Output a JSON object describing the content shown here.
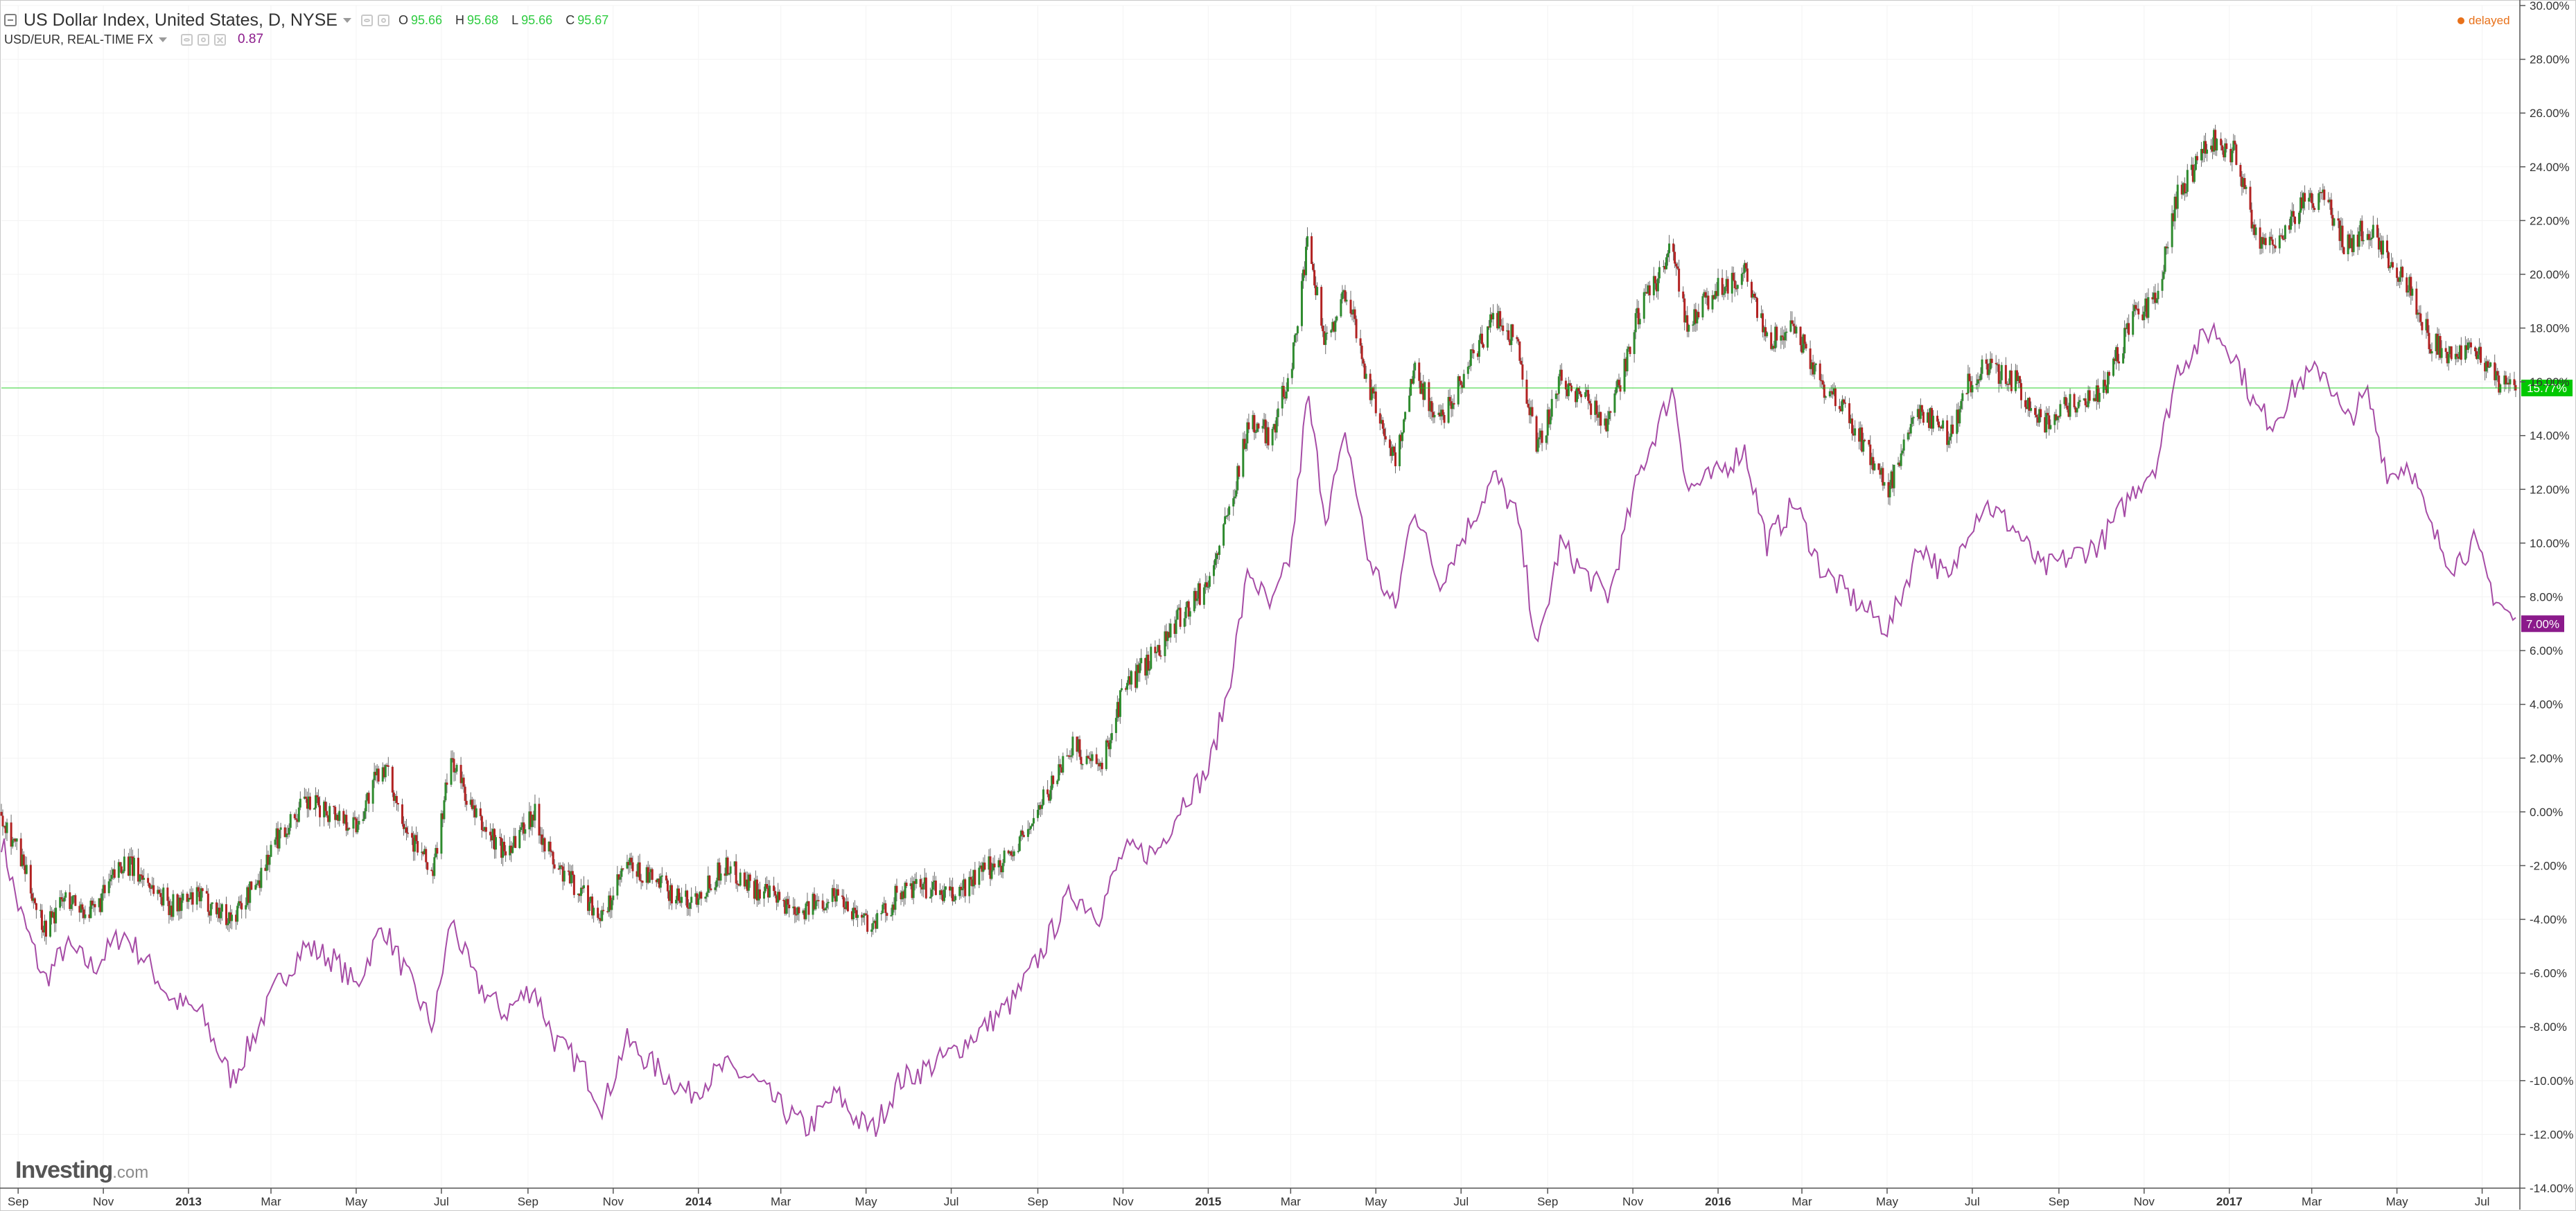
{
  "header": {
    "title": "US Dollar Index, United States, D, NYSE",
    "ohlc": [
      {
        "key": "O",
        "value": "95.66"
      },
      {
        "key": "H",
        "value": "95.68"
      },
      {
        "key": "L",
        "value": "95.66"
      },
      {
        "key": "C",
        "value": "95.67"
      }
    ],
    "compare_title": "USD/EUR, REAL-TIME FX",
    "compare_value": "0.87",
    "delayed_label": "delayed",
    "logo_main": "Investing",
    "logo_suffix": ".com"
  },
  "colors": {
    "up": "#2e8b2e",
    "down": "#b22222",
    "wick": "#6b6b6b",
    "compare_line": "#a64ca6",
    "last_price_line": "#00c800",
    "last_price_badge": "#00c800",
    "compare_badge": "#8b1a8b",
    "delayed": "#e8711a"
  },
  "chart_data": {
    "type": "line",
    "title": "US Dollar Index, United States, D, NYSE",
    "x_axis": {
      "ticks": [
        {
          "date": "2012-09-01",
          "label": "Sep"
        },
        {
          "date": "2012-11-01",
          "label": "Nov"
        },
        {
          "date": "2013-01-01",
          "label": "2013",
          "bold": true
        },
        {
          "date": "2013-03-01",
          "label": "Mar"
        },
        {
          "date": "2013-05-01",
          "label": "May"
        },
        {
          "date": "2013-07-01",
          "label": "Jul"
        },
        {
          "date": "2013-09-01",
          "label": "Sep"
        },
        {
          "date": "2013-11-01",
          "label": "Nov"
        },
        {
          "date": "2014-01-01",
          "label": "2014",
          "bold": true
        },
        {
          "date": "2014-03-01",
          "label": "Mar"
        },
        {
          "date": "2014-05-01",
          "label": "May"
        },
        {
          "date": "2014-07-01",
          "label": "Jul"
        },
        {
          "date": "2014-09-01",
          "label": "Sep"
        },
        {
          "date": "2014-11-01",
          "label": "Nov"
        },
        {
          "date": "2015-01-01",
          "label": "2015",
          "bold": true
        },
        {
          "date": "2015-03-01",
          "label": "Mar"
        },
        {
          "date": "2015-05-01",
          "label": "May"
        },
        {
          "date": "2015-07-01",
          "label": "Jul"
        },
        {
          "date": "2015-09-01",
          "label": "Sep"
        },
        {
          "date": "2015-11-01",
          "label": "Nov"
        },
        {
          "date": "2016-01-01",
          "label": "2016",
          "bold": true
        },
        {
          "date": "2016-03-01",
          "label": "Mar"
        },
        {
          "date": "2016-05-01",
          "label": "May"
        },
        {
          "date": "2016-07-01",
          "label": "Jul"
        },
        {
          "date": "2016-09-01",
          "label": "Sep"
        },
        {
          "date": "2016-11-01",
          "label": "Nov"
        },
        {
          "date": "2017-01-01",
          "label": "2017",
          "bold": true
        },
        {
          "date": "2017-03-01",
          "label": "Mar"
        },
        {
          "date": "2017-05-01",
          "label": "May"
        },
        {
          "date": "2017-07-01",
          "label": "Jul"
        }
      ],
      "range": [
        "2012-08-20",
        "2017-07-28"
      ]
    },
    "y_axis": {
      "unit": "%",
      "range": [
        -14,
        30
      ],
      "ticks": [
        30,
        28,
        26,
        24,
        22,
        20,
        18,
        16,
        14,
        12,
        10,
        8,
        6,
        4,
        2,
        0,
        -2,
        -4,
        -6,
        -8,
        -10,
        -12,
        -14
      ],
      "tick_labels": [
        "30.00%",
        "28.00%",
        "26.00%",
        "24.00%",
        "22.00%",
        "20.00%",
        "18.00%",
        "16.00%",
        "14.00%",
        "12.00%",
        "10.00%",
        "8.00%",
        "6.00%",
        "4.00%",
        "2.00%",
        "0.00%",
        "-2.00%",
        "-4.00%",
        "-6.00%",
        "-8.00%",
        "-10.00%",
        "-12.00%",
        "-14.00%"
      ]
    },
    "grid": true,
    "last_price_line": {
      "value": 15.77,
      "label": "15.77%"
    },
    "series": [
      {
        "name": "US Dollar Index, United States, D, NYSE",
        "type": "candlestick",
        "points": [
          [
            "2012-08-20",
            0.0
          ],
          [
            "2012-09-01",
            -1.5
          ],
          [
            "2012-09-20",
            -4.3
          ],
          [
            "2012-10-05",
            -3.2
          ],
          [
            "2012-10-25",
            -3.8
          ],
          [
            "2012-11-15",
            -1.8
          ],
          [
            "2012-12-01",
            -2.5
          ],
          [
            "2012-12-20",
            -3.5
          ],
          [
            "2013-01-10",
            -3.2
          ],
          [
            "2013-02-01",
            -4.0
          ],
          [
            "2013-02-20",
            -2.5
          ],
          [
            "2013-03-05",
            -1.0
          ],
          [
            "2013-03-25",
            0.3
          ],
          [
            "2013-04-15",
            0.0
          ],
          [
            "2013-05-01",
            -0.5
          ],
          [
            "2013-05-20",
            1.8
          ],
          [
            "2013-06-10",
            -1.0
          ],
          [
            "2013-06-25",
            -2.3
          ],
          [
            "2013-07-08",
            2.0
          ],
          [
            "2013-07-25",
            -0.2
          ],
          [
            "2013-08-15",
            -1.5
          ],
          [
            "2013-09-05",
            0.0
          ],
          [
            "2013-09-20",
            -2.0
          ],
          [
            "2013-10-10",
            -3.0
          ],
          [
            "2013-10-25",
            -4.0
          ],
          [
            "2013-11-10",
            -2.0
          ],
          [
            "2013-12-01",
            -2.6
          ],
          [
            "2013-12-25",
            -3.4
          ],
          [
            "2014-01-20",
            -2.0
          ],
          [
            "2014-02-10",
            -2.8
          ],
          [
            "2014-03-01",
            -3.4
          ],
          [
            "2014-03-20",
            -3.6
          ],
          [
            "2014-04-10",
            -3.0
          ],
          [
            "2014-04-25",
            -3.8
          ],
          [
            "2014-05-07",
            -4.2
          ],
          [
            "2014-05-25",
            -3.0
          ],
          [
            "2014-06-15",
            -2.8
          ],
          [
            "2014-07-01",
            -3.2
          ],
          [
            "2014-07-25",
            -2.2
          ],
          [
            "2014-08-15",
            -1.5
          ],
          [
            "2014-09-01",
            0.0
          ],
          [
            "2014-09-25",
            2.5
          ],
          [
            "2014-10-15",
            1.5
          ],
          [
            "2014-11-01",
            4.5
          ],
          [
            "2014-11-25",
            6.0
          ],
          [
            "2014-12-15",
            7.5
          ],
          [
            "2015-01-01",
            8.5
          ],
          [
            "2015-01-15",
            11.0
          ],
          [
            "2015-01-30",
            14.5
          ],
          [
            "2015-02-15",
            14.0
          ],
          [
            "2015-03-01",
            16.5
          ],
          [
            "2015-03-13",
            21.0
          ],
          [
            "2015-03-26",
            17.5
          ],
          [
            "2015-04-10",
            19.5
          ],
          [
            "2015-04-25",
            16.0
          ],
          [
            "2015-05-15",
            13.0
          ],
          [
            "2015-05-28",
            16.5
          ],
          [
            "2015-06-15",
            14.5
          ],
          [
            "2015-07-05",
            16.5
          ],
          [
            "2015-07-25",
            18.5
          ],
          [
            "2015-08-10",
            17.5
          ],
          [
            "2015-08-25",
            13.5
          ],
          [
            "2015-09-10",
            16.0
          ],
          [
            "2015-09-25",
            15.5
          ],
          [
            "2015-10-15",
            14.5
          ],
          [
            "2015-11-05",
            18.5
          ],
          [
            "2015-11-30",
            21.0
          ],
          [
            "2015-12-10",
            18.0
          ],
          [
            "2015-12-30",
            19.5
          ],
          [
            "2016-01-20",
            20.0
          ],
          [
            "2016-02-05",
            17.5
          ],
          [
            "2016-02-25",
            18.0
          ],
          [
            "2016-03-15",
            16.0
          ],
          [
            "2016-04-05",
            14.5
          ],
          [
            "2016-05-02",
            12.0
          ],
          [
            "2016-05-25",
            15.0
          ],
          [
            "2016-06-15",
            14.0
          ],
          [
            "2016-06-27",
            15.8
          ],
          [
            "2016-07-10",
            16.5
          ],
          [
            "2016-08-01",
            16.0
          ],
          [
            "2016-08-20",
            14.5
          ],
          [
            "2016-09-10",
            15.2
          ],
          [
            "2016-10-01",
            15.5
          ],
          [
            "2016-10-25",
            18.5
          ],
          [
            "2016-11-10",
            19.0
          ],
          [
            "2016-11-25",
            23.0
          ],
          [
            "2016-12-20",
            25.0
          ],
          [
            "2017-01-05",
            24.5
          ],
          [
            "2017-01-20",
            21.5
          ],
          [
            "2017-02-01",
            21.0
          ],
          [
            "2017-02-20",
            22.5
          ],
          [
            "2017-03-10",
            23.0
          ],
          [
            "2017-03-25",
            21.0
          ],
          [
            "2017-04-10",
            21.8
          ],
          [
            "2017-04-25",
            20.5
          ],
          [
            "2017-05-10",
            19.5
          ],
          [
            "2017-05-25",
            17.5
          ],
          [
            "2017-06-10",
            17.0
          ],
          [
            "2017-06-25",
            17.5
          ],
          [
            "2017-07-10",
            16.0
          ],
          [
            "2017-07-25",
            15.77
          ]
        ]
      },
      {
        "name": "USD/EUR, REAL-TIME FX",
        "type": "line",
        "points": [
          [
            "2012-08-20",
            -1.0
          ],
          [
            "2012-09-01",
            -3.5
          ],
          [
            "2012-09-20",
            -6.3
          ],
          [
            "2012-10-05",
            -5.0
          ],
          [
            "2012-10-25",
            -5.8
          ],
          [
            "2012-11-15",
            -4.5
          ],
          [
            "2012-12-01",
            -5.5
          ],
          [
            "2012-12-20",
            -7.0
          ],
          [
            "2013-01-10",
            -7.5
          ],
          [
            "2013-02-01",
            -10.0
          ],
          [
            "2013-02-20",
            -8.0
          ],
          [
            "2013-03-05",
            -6.5
          ],
          [
            "2013-03-25",
            -5.0
          ],
          [
            "2013-04-15",
            -5.5
          ],
          [
            "2013-05-01",
            -6.5
          ],
          [
            "2013-05-20",
            -4.2
          ],
          [
            "2013-06-10",
            -6.5
          ],
          [
            "2013-06-25",
            -8.0
          ],
          [
            "2013-07-08",
            -4.0
          ],
          [
            "2013-07-25",
            -6.3
          ],
          [
            "2013-08-15",
            -7.5
          ],
          [
            "2013-09-05",
            -6.5
          ],
          [
            "2013-09-20",
            -8.5
          ],
          [
            "2013-10-10",
            -9.5
          ],
          [
            "2013-10-25",
            -11.0
          ],
          [
            "2013-11-10",
            -8.5
          ],
          [
            "2013-12-01",
            -9.5
          ],
          [
            "2013-12-25",
            -10.5
          ],
          [
            "2014-01-20",
            -9.5
          ],
          [
            "2014-02-10",
            -10.0
          ],
          [
            "2014-03-01",
            -11.0
          ],
          [
            "2014-03-20",
            -11.8
          ],
          [
            "2014-04-10",
            -10.5
          ],
          [
            "2014-04-25",
            -11.5
          ],
          [
            "2014-05-07",
            -11.8
          ],
          [
            "2014-05-25",
            -10.0
          ],
          [
            "2014-06-15",
            -9.5
          ],
          [
            "2014-07-01",
            -9.0
          ],
          [
            "2014-07-25",
            -8.0
          ],
          [
            "2014-08-15",
            -7.0
          ],
          [
            "2014-09-01",
            -5.5
          ],
          [
            "2014-09-25",
            -3.0
          ],
          [
            "2014-10-15",
            -3.8
          ],
          [
            "2014-11-01",
            -1.5
          ],
          [
            "2014-11-25",
            -1.5
          ],
          [
            "2014-12-15",
            0.5
          ],
          [
            "2015-01-01",
            1.5
          ],
          [
            "2015-01-15",
            4.5
          ],
          [
            "2015-01-30",
            9.0
          ],
          [
            "2015-02-15",
            7.5
          ],
          [
            "2015-03-01",
            9.5
          ],
          [
            "2015-03-13",
            15.5
          ],
          [
            "2015-03-26",
            11.0
          ],
          [
            "2015-04-10",
            14.0
          ],
          [
            "2015-04-25",
            9.5
          ],
          [
            "2015-05-15",
            7.5
          ],
          [
            "2015-05-28",
            11.5
          ],
          [
            "2015-06-15",
            8.5
          ],
          [
            "2015-07-05",
            10.5
          ],
          [
            "2015-07-25",
            12.5
          ],
          [
            "2015-08-10",
            11.0
          ],
          [
            "2015-08-25",
            6.0
          ],
          [
            "2015-09-10",
            10.0
          ],
          [
            "2015-09-25",
            9.0
          ],
          [
            "2015-10-15",
            8.0
          ],
          [
            "2015-11-05",
            12.5
          ],
          [
            "2015-11-30",
            15.8
          ],
          [
            "2015-12-10",
            12.0
          ],
          [
            "2015-12-30",
            12.5
          ],
          [
            "2016-01-20",
            13.5
          ],
          [
            "2016-02-05",
            10.0
          ],
          [
            "2016-02-25",
            11.5
          ],
          [
            "2016-03-15",
            9.0
          ],
          [
            "2016-04-05",
            8.0
          ],
          [
            "2016-05-02",
            6.8
          ],
          [
            "2016-05-25",
            10.0
          ],
          [
            "2016-06-15",
            8.5
          ],
          [
            "2016-06-27",
            10.5
          ],
          [
            "2016-07-10",
            11.5
          ],
          [
            "2016-08-01",
            10.5
          ],
          [
            "2016-08-20",
            9.0
          ],
          [
            "2016-09-10",
            9.5
          ],
          [
            "2016-10-01",
            10.0
          ],
          [
            "2016-10-25",
            12.0
          ],
          [
            "2016-11-10",
            13.0
          ],
          [
            "2016-11-25",
            16.5
          ],
          [
            "2016-12-20",
            18.0
          ],
          [
            "2017-01-05",
            17.0
          ],
          [
            "2017-01-20",
            15.0
          ],
          [
            "2017-02-01",
            14.5
          ],
          [
            "2017-02-20",
            16.0
          ],
          [
            "2017-03-10",
            16.5
          ],
          [
            "2017-03-25",
            14.5
          ],
          [
            "2017-04-10",
            15.5
          ],
          [
            "2017-04-25",
            12.5
          ],
          [
            "2017-05-10",
            13.0
          ],
          [
            "2017-05-25",
            10.5
          ],
          [
            "2017-06-10",
            9.2
          ],
          [
            "2017-06-25",
            10.0
          ],
          [
            "2017-07-10",
            8.0
          ],
          [
            "2017-07-25",
            7.0
          ]
        ],
        "last_value": {
          "value": 7.0,
          "label": "7.00%"
        }
      }
    ]
  }
}
